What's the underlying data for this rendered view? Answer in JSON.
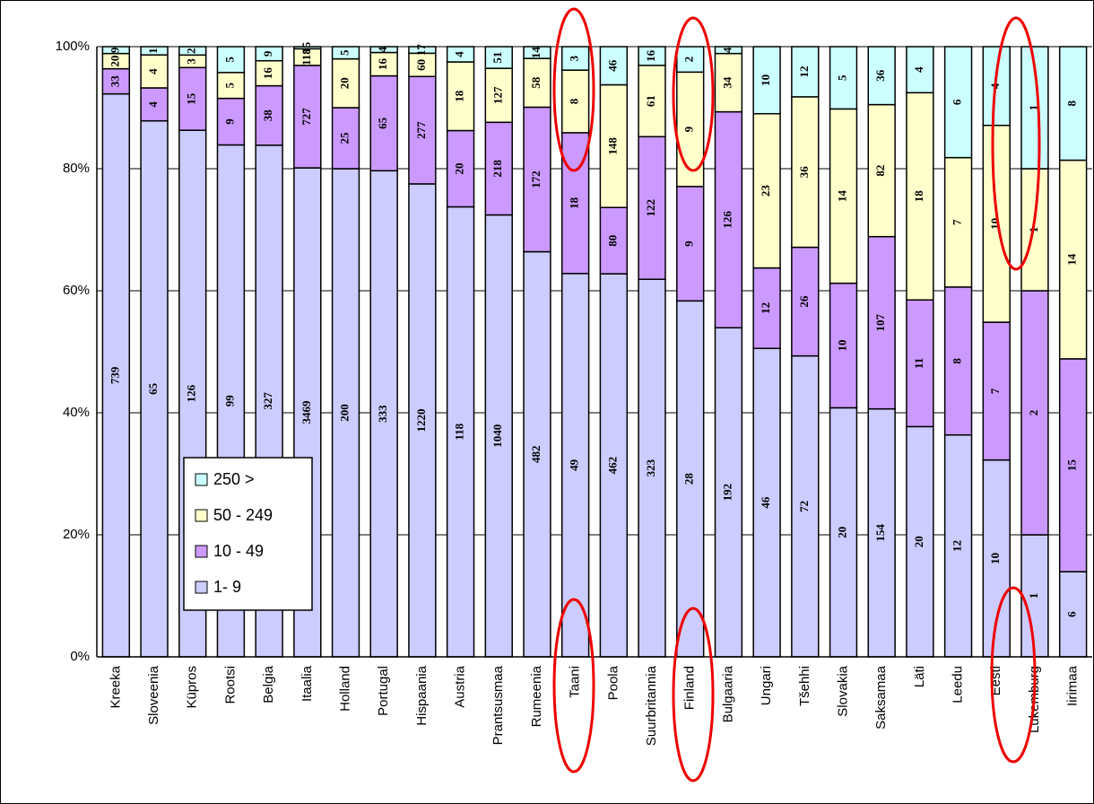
{
  "chart_data": {
    "type": "bar",
    "stacked": "percent",
    "categories": [
      "Kreeka",
      "Sloveenia",
      "Küpros",
      "Rootsi",
      "Belgia",
      "Itaalia",
      "Holland",
      "Portugal",
      "Hispaania",
      "Austria",
      "Prantsusmaa",
      "Rumeenia",
      "Taani",
      "Poola",
      "Suurbritannia",
      "Finland",
      "Bulgaaria",
      "Ungari",
      "Tšehhi",
      "Slovakia",
      "Saksamaa",
      "Läti",
      "Leedu",
      "Eesti",
      "Lukemburg",
      "Iirimaa"
    ],
    "series": [
      {
        "name": "1- 9",
        "color": "#ccccff",
        "values": [
          739,
          65,
          126,
          99,
          327,
          3469,
          200,
          333,
          1220,
          118,
          1040,
          482,
          49,
          462,
          323,
          28,
          192,
          46,
          72,
          20,
          154,
          20,
          12,
          10,
          1,
          6
        ]
      },
      {
        "name": "10 - 49",
        "color": "#cc99ff",
        "values": [
          33,
          4,
          15,
          9,
          38,
          727,
          25,
          65,
          277,
          20,
          218,
          172,
          18,
          80,
          122,
          9,
          126,
          12,
          26,
          10,
          107,
          11,
          8,
          7,
          2,
          15
        ]
      },
      {
        "name": "50 - 249",
        "color": "#ffffcc",
        "values": [
          20,
          4,
          3,
          5,
          16,
          118,
          20,
          16,
          60,
          18,
          127,
          58,
          8,
          148,
          61,
          9,
          34,
          23,
          36,
          14,
          82,
          18,
          7,
          10,
          1,
          14
        ]
      },
      {
        "name": "250 >",
        "color": "#ccffff",
        "values": [
          9,
          1,
          2,
          5,
          9,
          15,
          5,
          4,
          17,
          4,
          51,
          14,
          3,
          46,
          16,
          2,
          4,
          10,
          12,
          5,
          36,
          4,
          6,
          4,
          1,
          8
        ]
      }
    ],
    "ylim": [
      0,
      100
    ],
    "yticks": [
      {
        "value": 0,
        "label": "0%"
      },
      {
        "value": 20,
        "label": "20%"
      },
      {
        "value": 40,
        "label": "40%"
      },
      {
        "value": 60,
        "label": "60%"
      },
      {
        "value": 80,
        "label": "80%"
      },
      {
        "value": 100,
        "label": "100%"
      }
    ],
    "grid": true
  }
}
